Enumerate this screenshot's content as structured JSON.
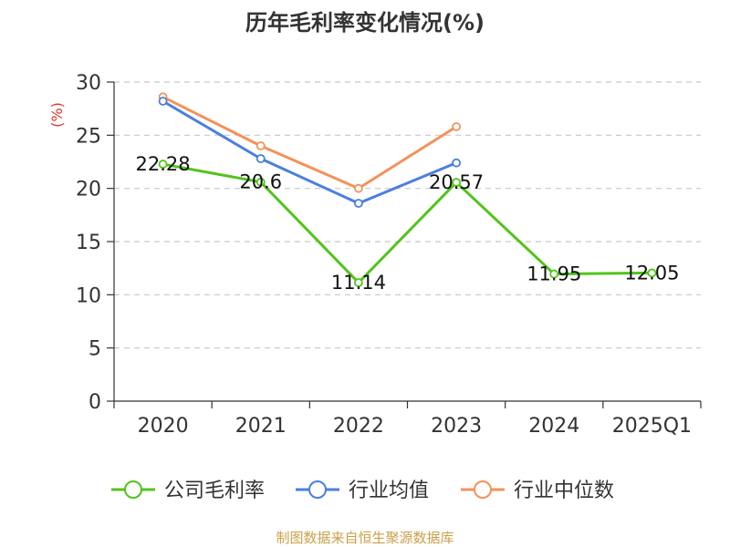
{
  "chart_data": {
    "type": "line",
    "title": "历年毛利率变化情况(%)",
    "ylabel": "(%)",
    "xlabel": "",
    "categories": [
      "2020",
      "2021",
      "2022",
      "2023",
      "2024",
      "2025Q1"
    ],
    "ylim": [
      0,
      30
    ],
    "yticks": [
      0,
      5,
      10,
      15,
      20,
      25,
      30
    ],
    "grid": true,
    "legend_position": "bottom",
    "series": [
      {
        "name": "公司毛利率",
        "color": "#52c41a",
        "values": [
          22.28,
          20.6,
          11.14,
          20.57,
          11.95,
          12.05
        ],
        "labels": [
          "22.28",
          "20.6",
          "11.14",
          "20.57",
          "11.95",
          "12.05"
        ]
      },
      {
        "name": "行业均值",
        "color": "#4a7fe0",
        "values": [
          28.2,
          22.8,
          18.6,
          22.4,
          null,
          null
        ]
      },
      {
        "name": "行业中位数",
        "color": "#f5915a",
        "values": [
          28.6,
          24.0,
          20.0,
          25.8,
          null,
          null
        ]
      }
    ]
  },
  "source_text": "制图数据来自恒生聚源数据库"
}
